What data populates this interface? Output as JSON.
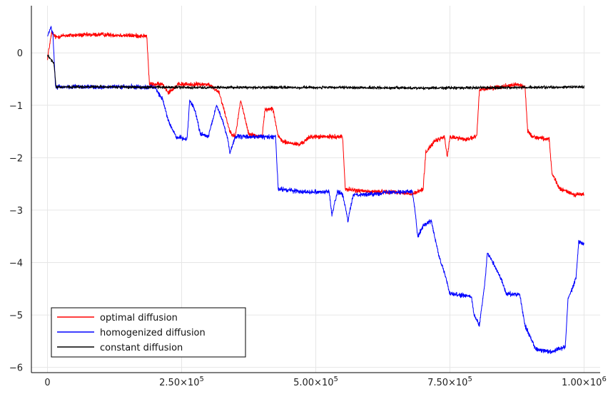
{
  "chart_data": {
    "type": "line",
    "title": "",
    "xlabel": "",
    "ylabel": "",
    "xlim": [
      -30000,
      1030000
    ],
    "ylim": [
      -6.1,
      0.9
    ],
    "grid": true,
    "legend_position": "bottom-left",
    "x_ticks": [
      {
        "value": 0,
        "label": "0"
      },
      {
        "value": 250000,
        "label": "2.50×10",
        "exp": "5"
      },
      {
        "value": 500000,
        "label": "5.00×10",
        "exp": "5"
      },
      {
        "value": 750000,
        "label": "7.50×10",
        "exp": "5"
      },
      {
        "value": 1000000,
        "label": "1.00×10",
        "exp": "6"
      }
    ],
    "y_ticks": [
      {
        "value": 0,
        "label": "0"
      },
      {
        "value": -1,
        "label": "−1"
      },
      {
        "value": -2,
        "label": "−2"
      },
      {
        "value": -3,
        "label": "−3"
      },
      {
        "value": -4,
        "label": "−4"
      },
      {
        "value": -5,
        "label": "−5"
      },
      {
        "value": -6,
        "label": "−6"
      }
    ],
    "series": [
      {
        "name": "optimal diffusion",
        "color": "#ff0000",
        "noise": 0.06,
        "points": [
          [
            0,
            -0.1
          ],
          [
            8000,
            0.4
          ],
          [
            15000,
            0.3
          ],
          [
            30000,
            0.33
          ],
          [
            100000,
            0.35
          ],
          [
            185000,
            0.32
          ],
          [
            190000,
            -0.6
          ],
          [
            215000,
            -0.6
          ],
          [
            225000,
            -0.75
          ],
          [
            245000,
            -0.6
          ],
          [
            300000,
            -0.6
          ],
          [
            320000,
            -0.75
          ],
          [
            340000,
            -1.5
          ],
          [
            350000,
            -1.6
          ],
          [
            360000,
            -0.9
          ],
          [
            375000,
            -1.55
          ],
          [
            400000,
            -1.6
          ],
          [
            405000,
            -1.1
          ],
          [
            420000,
            -1.05
          ],
          [
            430000,
            -1.6
          ],
          [
            440000,
            -1.7
          ],
          [
            470000,
            -1.75
          ],
          [
            490000,
            -1.6
          ],
          [
            550000,
            -1.6
          ],
          [
            555000,
            -2.6
          ],
          [
            600000,
            -2.65
          ],
          [
            650000,
            -2.65
          ],
          [
            680000,
            -2.7
          ],
          [
            700000,
            -2.6
          ],
          [
            705000,
            -1.9
          ],
          [
            720000,
            -1.7
          ],
          [
            740000,
            -1.6
          ],
          [
            745000,
            -2.0
          ],
          [
            750000,
            -1.6
          ],
          [
            780000,
            -1.65
          ],
          [
            800000,
            -1.6
          ],
          [
            805000,
            -0.7
          ],
          [
            840000,
            -0.65
          ],
          [
            875000,
            -0.6
          ],
          [
            890000,
            -0.65
          ],
          [
            895000,
            -1.5
          ],
          [
            905000,
            -1.6
          ],
          [
            935000,
            -1.65
          ],
          [
            940000,
            -2.3
          ],
          [
            955000,
            -2.6
          ],
          [
            970000,
            -2.65
          ],
          [
            980000,
            -2.7
          ],
          [
            1000000,
            -2.7
          ]
        ]
      },
      {
        "name": "homogenized diffusion",
        "color": "#0000ff",
        "noise": 0.06,
        "points": [
          [
            0,
            0.3
          ],
          [
            6000,
            0.5
          ],
          [
            10000,
            0.35
          ],
          [
            15000,
            -0.65
          ],
          [
            100000,
            -0.65
          ],
          [
            200000,
            -0.65
          ],
          [
            215000,
            -0.9
          ],
          [
            225000,
            -1.3
          ],
          [
            240000,
            -1.6
          ],
          [
            260000,
            -1.65
          ],
          [
            265000,
            -0.9
          ],
          [
            275000,
            -1.1
          ],
          [
            285000,
            -1.55
          ],
          [
            300000,
            -1.6
          ],
          [
            315000,
            -1.0
          ],
          [
            325000,
            -1.25
          ],
          [
            335000,
            -1.6
          ],
          [
            340000,
            -1.9
          ],
          [
            350000,
            -1.6
          ],
          [
            400000,
            -1.6
          ],
          [
            425000,
            -1.6
          ],
          [
            430000,
            -2.6
          ],
          [
            480000,
            -2.65
          ],
          [
            525000,
            -2.65
          ],
          [
            530000,
            -3.1
          ],
          [
            540000,
            -2.65
          ],
          [
            550000,
            -2.7
          ],
          [
            560000,
            -3.2
          ],
          [
            570000,
            -2.7
          ],
          [
            600000,
            -2.7
          ],
          [
            640000,
            -2.65
          ],
          [
            680000,
            -2.65
          ],
          [
            685000,
            -3.0
          ],
          [
            690000,
            -3.5
          ],
          [
            700000,
            -3.3
          ],
          [
            715000,
            -3.2
          ],
          [
            730000,
            -3.9
          ],
          [
            740000,
            -4.2
          ],
          [
            750000,
            -4.6
          ],
          [
            790000,
            -4.65
          ],
          [
            795000,
            -5.0
          ],
          [
            805000,
            -5.2
          ],
          [
            815000,
            -4.4
          ],
          [
            820000,
            -3.8
          ],
          [
            830000,
            -4.0
          ],
          [
            845000,
            -4.3
          ],
          [
            855000,
            -4.6
          ],
          [
            880000,
            -4.6
          ],
          [
            890000,
            -5.2
          ],
          [
            910000,
            -5.65
          ],
          [
            940000,
            -5.7
          ],
          [
            965000,
            -5.6
          ],
          [
            970000,
            -4.7
          ],
          [
            985000,
            -4.3
          ],
          [
            990000,
            -3.6
          ],
          [
            1000000,
            -3.65
          ]
        ]
      },
      {
        "name": "constant diffusion",
        "color": "#000000",
        "noise": 0.04,
        "points": [
          [
            0,
            -0.05
          ],
          [
            5000,
            -0.1
          ],
          [
            12000,
            -0.2
          ],
          [
            16000,
            -0.65
          ],
          [
            100000,
            -0.65
          ],
          [
            300000,
            -0.66
          ],
          [
            500000,
            -0.66
          ],
          [
            700000,
            -0.67
          ],
          [
            900000,
            -0.66
          ],
          [
            1000000,
            -0.65
          ]
        ]
      }
    ]
  }
}
